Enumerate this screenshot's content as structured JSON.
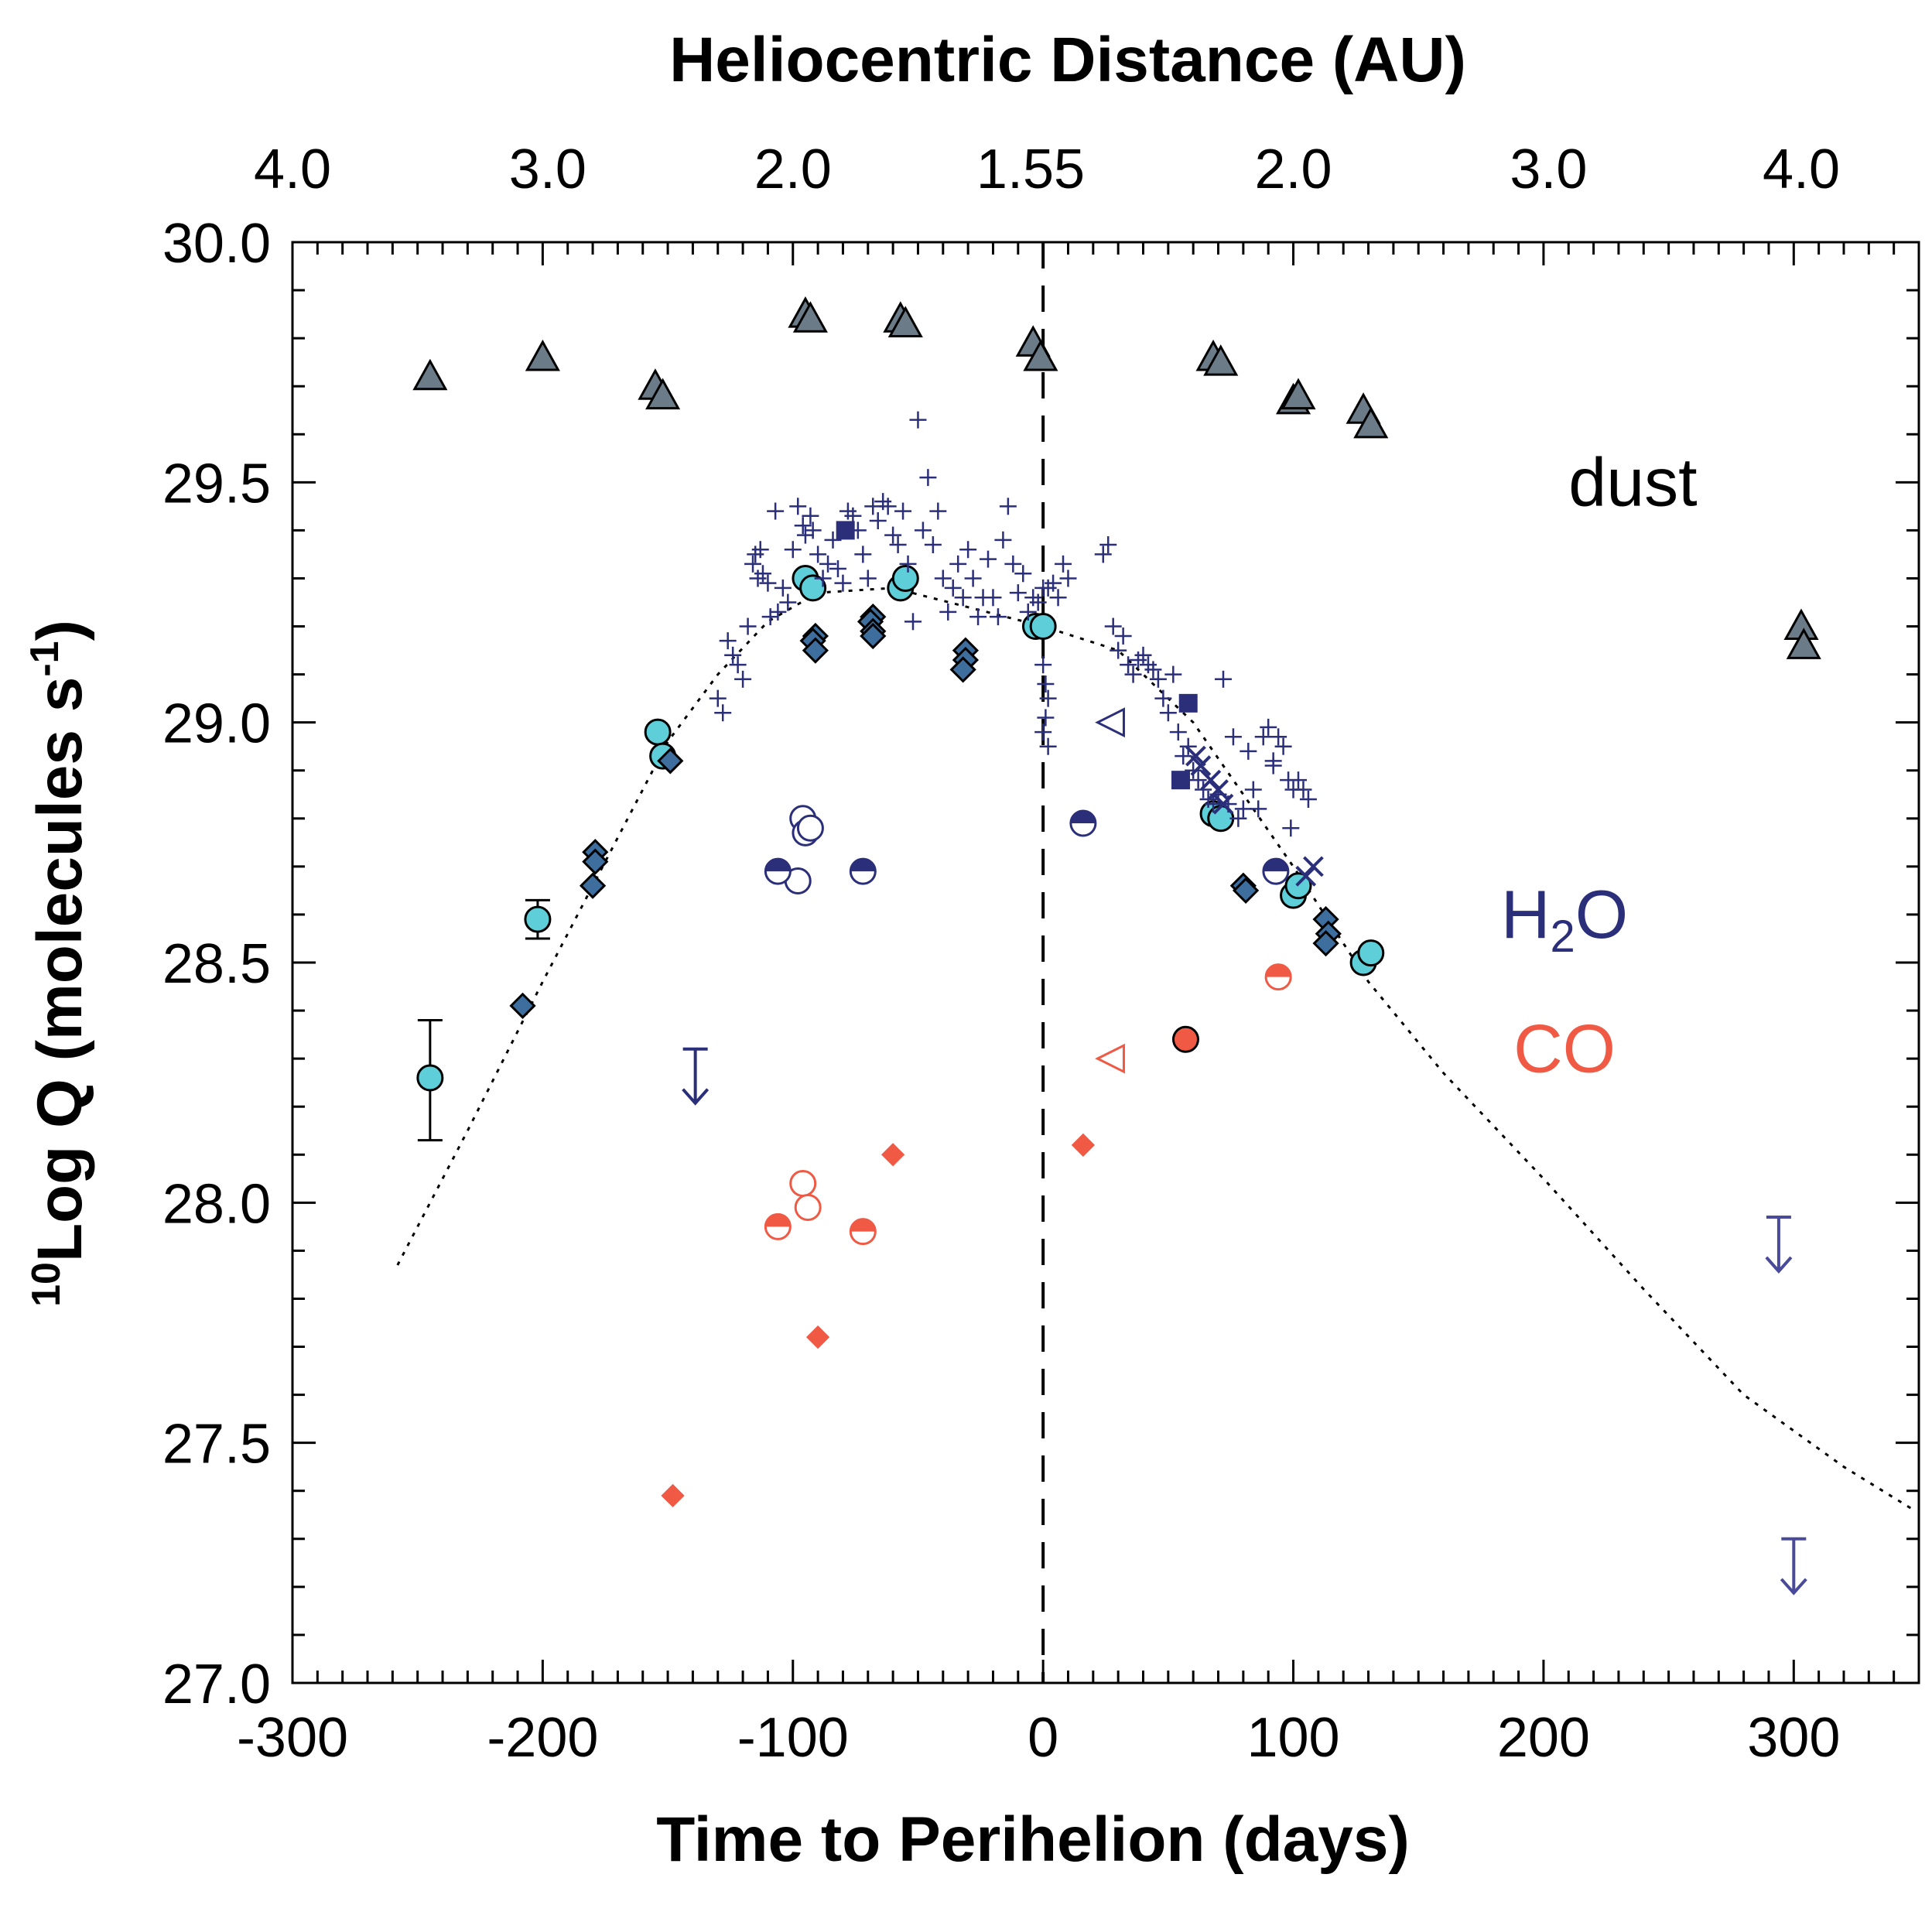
{
  "chart_data": {
    "type": "scatter",
    "xlabel": "Time to Perihelion (days)",
    "top_axis_label": "Heliocentric Distance (AU)",
    "ylabel_superscript": "10",
    "ylabel_main": "Log Q (molecules s",
    "ylabel_exp": "-1",
    "ylabel_close": ")",
    "xlim": [
      -300,
      350
    ],
    "ylim": [
      27.0,
      30.0
    ],
    "x_ticks": [
      -300,
      -200,
      -100,
      0,
      100,
      200,
      300
    ],
    "x_tick_labels": [
      "-300",
      "-200",
      "-100",
      "0",
      "100",
      "200",
      "300"
    ],
    "y_ticks": [
      27.0,
      27.5,
      28.0,
      28.5,
      29.0,
      29.5,
      30.0
    ],
    "y_tick_labels": [
      "27.0",
      "27.5",
      "28.0",
      "28.5",
      "29.0",
      "29.5",
      "30.0"
    ],
    "top_ticks": [
      {
        "x": -300,
        "label": "4.0"
      },
      {
        "x": -198,
        "label": "3.0"
      },
      {
        "x": -100,
        "label": "2.0"
      },
      {
        "x": -5,
        "label": "1.55"
      },
      {
        "x": 100,
        "label": "2.0"
      },
      {
        "x": 202,
        "label": "3.0"
      },
      {
        "x": 303,
        "label": "4.0"
      }
    ],
    "perihelion_line_x": 0,
    "annotations": [
      {
        "text": "dust",
        "x": 210,
        "y": 29.5,
        "color": "#000000"
      },
      {
        "text": "H",
        "sub": "2",
        "tail": "O",
        "x": 183,
        "y": 28.6,
        "color": "#2b2f7a"
      },
      {
        "text": "CO",
        "x": 188,
        "y": 28.32,
        "color": "#f05a45"
      }
    ],
    "series": [
      {
        "name": "dust",
        "marker": "triangle",
        "color": "#6b7b88",
        "points": [
          [
            -245,
            29.72
          ],
          [
            -200,
            29.76
          ],
          [
            -155,
            29.7
          ],
          [
            -152,
            29.68
          ],
          [
            -95,
            29.85
          ],
          [
            -93,
            29.84
          ],
          [
            -57,
            29.84
          ],
          [
            -55,
            29.83
          ],
          [
            -4,
            29.79
          ],
          [
            -1,
            29.76
          ],
          [
            68,
            29.76
          ],
          [
            71,
            29.75
          ],
          [
            100,
            29.67
          ],
          [
            102,
            29.68
          ],
          [
            128,
            29.65
          ],
          [
            131,
            29.62
          ],
          [
            303,
            29.2
          ],
          [
            304,
            29.16
          ]
        ]
      },
      {
        "name": "H2O cyan circles",
        "marker": "circle",
        "color": "#5ecfd8",
        "points": [
          [
            -245,
            28.26
          ],
          [
            -202,
            28.59
          ],
          [
            -154,
            28.98
          ],
          [
            -152,
            28.93
          ],
          [
            -95,
            29.3
          ],
          [
            -92,
            29.28
          ],
          [
            -57,
            29.28
          ],
          [
            -55,
            29.3
          ],
          [
            -3,
            29.2
          ],
          [
            0,
            29.2
          ],
          [
            68,
            28.81
          ],
          [
            71,
            28.8
          ],
          [
            100,
            28.64
          ],
          [
            102,
            28.66
          ],
          [
            128,
            28.5
          ],
          [
            131,
            28.52
          ]
        ]
      },
      {
        "name": "H2O diamonds",
        "marker": "diamond",
        "color": "#3d6e9e",
        "points": [
          [
            -208,
            28.41
          ],
          [
            -179,
            28.73
          ],
          [
            -179,
            28.71
          ],
          [
            -180,
            28.66
          ],
          [
            -149,
            28.92
          ],
          [
            -91,
            29.18
          ],
          [
            -92,
            29.17
          ],
          [
            -91,
            29.15
          ],
          [
            -68,
            29.22
          ],
          [
            -69,
            29.21
          ],
          [
            -68,
            29.19
          ],
          [
            -68,
            29.18
          ],
          [
            -31,
            29.15
          ],
          [
            -31,
            29.13
          ],
          [
            -32,
            29.11
          ],
          [
            80,
            28.66
          ],
          [
            81,
            28.65
          ],
          [
            113,
            28.59
          ],
          [
            114,
            28.56
          ],
          [
            113,
            28.54
          ]
        ]
      },
      {
        "name": "H2O squares",
        "marker": "square",
        "color": "#2b2f7a",
        "points": [
          [
            -79,
            29.4
          ],
          [
            58,
            29.04
          ],
          [
            55,
            28.88
          ]
        ]
      },
      {
        "name": "H2O crosses",
        "marker": "x",
        "color": "#2b2f7a",
        "points": [
          [
            61,
            28.93
          ],
          [
            63,
            28.91
          ],
          [
            67,
            28.88
          ],
          [
            70,
            28.86
          ],
          [
            72,
            28.83
          ],
          [
            105,
            28.68
          ],
          [
            108,
            28.7
          ]
        ]
      },
      {
        "name": "H2O plus",
        "marker": "plus",
        "color": "#2b2f7a",
        "points": [
          [
            -130,
            29.05
          ],
          [
            -128,
            29.02
          ],
          [
            -126,
            29.17
          ],
          [
            -124,
            29.14
          ],
          [
            -122,
            29.12
          ],
          [
            -120,
            29.09
          ],
          [
            -118,
            29.2
          ],
          [
            -116,
            29.33
          ],
          [
            -115,
            29.35
          ],
          [
            -114,
            29.3
          ],
          [
            -113,
            29.36
          ],
          [
            -112,
            29.31
          ],
          [
            -110,
            29.29
          ],
          [
            -109,
            29.22
          ],
          [
            -107,
            29.44
          ],
          [
            -106,
            29.23
          ],
          [
            -104,
            29.28
          ],
          [
            -102,
            29.25
          ],
          [
            -100,
            29.36
          ],
          [
            -98,
            29.45
          ],
          [
            -96,
            29.41
          ],
          [
            -95,
            29.39
          ],
          [
            -93,
            29.43
          ],
          [
            -92,
            29.4
          ],
          [
            -90,
            29.35
          ],
          [
            -88,
            29.3
          ],
          [
            -86,
            29.33
          ],
          [
            -84,
            29.38
          ],
          [
            -82,
            29.32
          ],
          [
            -80,
            29.29
          ],
          [
            -78,
            29.44
          ],
          [
            -76,
            29.43
          ],
          [
            -74,
            29.4
          ],
          [
            -72,
            29.35
          ],
          [
            -70,
            29.3
          ],
          [
            -68,
            29.45
          ],
          [
            -66,
            29.42
          ],
          [
            -64,
            29.46
          ],
          [
            -62,
            29.45
          ],
          [
            -60,
            29.39
          ],
          [
            -58,
            29.37
          ],
          [
            -56,
            29.44
          ],
          [
            -54,
            29.33
          ],
          [
            -52,
            29.21
          ],
          [
            -50,
            29.63
          ],
          [
            -48,
            29.4
          ],
          [
            -46,
            29.51
          ],
          [
            -44,
            29.37
          ],
          [
            -42,
            29.44
          ],
          [
            -40,
            29.3
          ],
          [
            -38,
            29.23
          ],
          [
            -36,
            29.28
          ],
          [
            -34,
            29.33
          ],
          [
            -32,
            29.26
          ],
          [
            -30,
            29.36
          ],
          [
            -28,
            29.3
          ],
          [
            -26,
            29.22
          ],
          [
            -24,
            29.26
          ],
          [
            -22,
            29.34
          ],
          [
            -20,
            29.26
          ],
          [
            -18,
            29.22
          ],
          [
            -16,
            29.38
          ],
          [
            -14,
            29.45
          ],
          [
            -12,
            29.33
          ],
          [
            -10,
            29.27
          ],
          [
            -8,
            29.31
          ],
          [
            -6,
            29.23
          ],
          [
            -4,
            29.26
          ],
          [
            -2,
            29.25
          ],
          [
            0,
            29.28
          ],
          [
            2,
            29.28
          ],
          [
            4,
            29.29
          ],
          [
            6,
            29.26
          ],
          [
            8,
            29.33
          ],
          [
            10,
            29.3
          ],
          [
            0,
            29.12
          ],
          [
            1,
            29.08
          ],
          [
            1,
            29.01
          ],
          [
            0,
            28.98
          ],
          [
            2,
            28.95
          ],
          [
            2,
            29.05
          ],
          [
            24,
            29.35
          ],
          [
            26,
            29.37
          ],
          [
            28,
            29.2
          ],
          [
            30,
            29.15
          ],
          [
            32,
            29.18
          ],
          [
            34,
            29.12
          ],
          [
            36,
            29.1
          ],
          [
            38,
            29.13
          ],
          [
            40,
            29.14
          ],
          [
            42,
            29.12
          ],
          [
            44,
            29.11
          ],
          [
            46,
            29.09
          ],
          [
            48,
            29.05
          ],
          [
            50,
            29.02
          ],
          [
            52,
            29.1
          ],
          [
            54,
            28.98
          ],
          [
            56,
            28.93
          ],
          [
            58,
            28.95
          ],
          [
            60,
            28.9
          ],
          [
            62,
            28.88
          ],
          [
            64,
            28.86
          ],
          [
            66,
            28.84
          ],
          [
            68,
            28.83
          ],
          [
            70,
            28.85
          ],
          [
            72,
            29.09
          ],
          [
            74,
            28.83
          ],
          [
            76,
            28.97
          ],
          [
            78,
            28.8
          ],
          [
            80,
            28.82
          ],
          [
            82,
            28.94
          ],
          [
            84,
            28.86
          ],
          [
            86,
            28.82
          ],
          [
            88,
            28.97
          ],
          [
            90,
            28.99
          ],
          [
            92,
            28.92
          ],
          [
            94,
            28.97
          ],
          [
            96,
            28.95
          ],
          [
            98,
            28.88
          ],
          [
            100,
            28.86
          ],
          [
            102,
            28.88
          ],
          [
            104,
            28.86
          ],
          [
            106,
            28.84
          ],
          [
            92,
            28.91
          ],
          [
            99,
            28.78
          ]
        ]
      },
      {
        "name": "H2O open circles",
        "marker": "open-circle",
        "color": "#2b2f7a",
        "points": [
          [
            -96,
            28.8
          ],
          [
            -95,
            28.77
          ],
          [
            -93,
            28.78
          ],
          [
            -98,
            28.67
          ]
        ]
      },
      {
        "name": "H2O half circles",
        "marker": "half-circle",
        "color": "#2b2f7a",
        "points": [
          [
            -106,
            28.69
          ],
          [
            -72,
            28.69
          ],
          [
            16,
            28.79
          ],
          [
            93,
            28.69
          ]
        ]
      },
      {
        "name": "H2O open triangle",
        "marker": "open-triangle-left",
        "color": "#2b2f7a",
        "points": [
          [
            27,
            29.0
          ]
        ]
      },
      {
        "name": "H2O upper limit",
        "marker": "upper-limit",
        "color": "#2b2f7a",
        "points": [
          [
            -139,
            28.32
          ]
        ]
      },
      {
        "name": "dust upper limits",
        "marker": "upper-limit",
        "color": "#4a4a9a",
        "points": [
          [
            294,
            27.97
          ],
          [
            300,
            27.3
          ]
        ]
      },
      {
        "name": "CO diamonds",
        "marker": "diamond",
        "color": "#f05a45",
        "points": [
          [
            -148,
            27.39
          ],
          [
            -90,
            27.72
          ],
          [
            -60,
            28.1
          ],
          [
            16,
            28.12
          ]
        ]
      },
      {
        "name": "CO open circles",
        "marker": "open-circle",
        "color": "#f05a45",
        "points": [
          [
            -96,
            28.04
          ],
          [
            -94,
            27.99
          ]
        ]
      },
      {
        "name": "CO half circles",
        "marker": "half-circle",
        "color": "#f05a45",
        "points": [
          [
            -106,
            27.95
          ],
          [
            -72,
            27.94
          ],
          [
            94,
            28.47
          ]
        ]
      },
      {
        "name": "CO filled circle",
        "marker": "circle",
        "color": "#f05a45",
        "points": [
          [
            57,
            28.34
          ]
        ]
      },
      {
        "name": "CO open triangle",
        "marker": "open-triangle-left",
        "color": "#f05a45",
        "points": [
          [
            27,
            28.3
          ]
        ]
      }
    ],
    "error_bars": [
      {
        "x": -245,
        "y_low": 28.13,
        "y_high": 28.38
      },
      {
        "x": -202,
        "y_low": 28.55,
        "y_high": 28.63
      }
    ],
    "model_curve": [
      [
        -258,
        27.87
      ],
      [
        -230,
        28.15
      ],
      [
        -200,
        28.46
      ],
      [
        -170,
        28.76
      ],
      [
        -150,
        28.96
      ],
      [
        -130,
        29.1
      ],
      [
        -110,
        29.21
      ],
      [
        -90,
        29.27
      ],
      [
        -60,
        29.28
      ],
      [
        -30,
        29.24
      ],
      [
        0,
        29.2
      ],
      [
        30,
        29.15
      ],
      [
        60,
        29.0
      ],
      [
        80,
        28.85
      ],
      [
        100,
        28.7
      ],
      [
        130,
        28.46
      ],
      [
        160,
        28.27
      ],
      [
        200,
        28.05
      ],
      [
        240,
        27.82
      ],
      [
        280,
        27.6
      ],
      [
        320,
        27.45
      ],
      [
        348,
        27.36
      ]
    ]
  }
}
